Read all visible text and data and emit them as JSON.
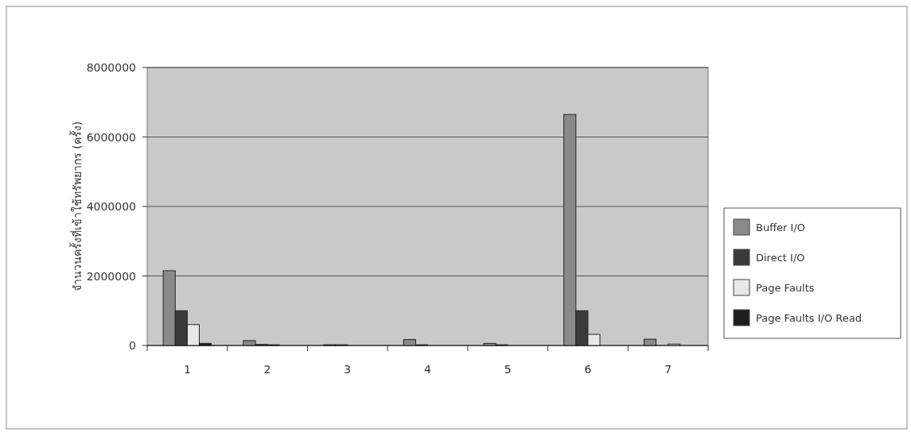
{
  "chart_data": {
    "type": "bar",
    "ylabel": "จำนวนครั้งที่เข้าใช้ทรัพยากร (ครั้ง)",
    "categories": [
      "1",
      "2",
      "3",
      "4",
      "5",
      "6",
      "7"
    ],
    "series": [
      {
        "name": "Buffer I/O",
        "color": "#8a8a8a",
        "values": [
          2150000,
          140000,
          20000,
          170000,
          60000,
          6650000,
          180000
        ]
      },
      {
        "name": "Direct I/O",
        "color": "#3a3a3a",
        "values": [
          1000000,
          30000,
          20000,
          20000,
          20000,
          1000000,
          0
        ]
      },
      {
        "name": "Page Faults",
        "color": "#e8e8e8",
        "values": [
          600000,
          20000,
          0,
          0,
          0,
          320000,
          40000
        ]
      },
      {
        "name": "Page Faults I/O Read",
        "color": "#1e1e1e",
        "values": [
          60000,
          null,
          0,
          0,
          0,
          null,
          0
        ]
      }
    ],
    "ylim": [
      0,
      8000000
    ],
    "yticks": [
      0,
      2000000,
      4000000,
      6000000,
      8000000
    ],
    "grid": "y",
    "legend": "right"
  }
}
